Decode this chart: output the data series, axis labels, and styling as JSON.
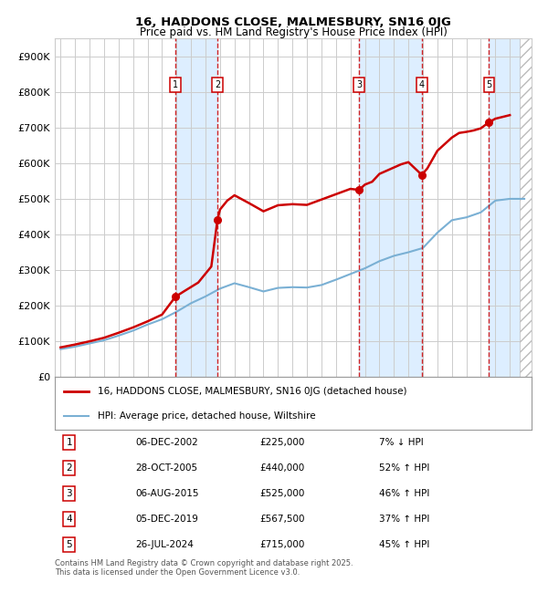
{
  "title": "16, HADDONS CLOSE, MALMESBURY, SN16 0JG",
  "subtitle": "Price paid vs. HM Land Registry's House Price Index (HPI)",
  "ylim": [
    0,
    950000
  ],
  "yticks": [
    0,
    100000,
    200000,
    300000,
    400000,
    500000,
    600000,
    700000,
    800000,
    900000
  ],
  "ytick_labels": [
    "£0",
    "£100K",
    "£200K",
    "£300K",
    "£400K",
    "£500K",
    "£600K",
    "£700K",
    "£800K",
    "£900K"
  ],
  "xlim_start": 1994.6,
  "xlim_end": 2027.5,
  "sales": [
    {
      "label": 1,
      "date": "06-DEC-2002",
      "year": 2002.92,
      "price": 225000,
      "pct": "7%",
      "dir": "↓"
    },
    {
      "label": 2,
      "date": "28-OCT-2005",
      "year": 2005.82,
      "price": 440000,
      "pct": "52%",
      "dir": "↑"
    },
    {
      "label": 3,
      "date": "06-AUG-2015",
      "year": 2015.59,
      "price": 525000,
      "pct": "46%",
      "dir": "↑"
    },
    {
      "label": 4,
      "date": "05-DEC-2019",
      "year": 2019.92,
      "price": 567500,
      "pct": "37%",
      "dir": "↑"
    },
    {
      "label": 5,
      "date": "26-JUL-2024",
      "year": 2024.56,
      "price": 715000,
      "pct": "45%",
      "dir": "↑"
    }
  ],
  "legend_line1": "16, HADDONS CLOSE, MALMESBURY, SN16 0JG (detached house)",
  "legend_line2": "HPI: Average price, detached house, Wiltshire",
  "footer": "Contains HM Land Registry data © Crown copyright and database right 2025.\nThis data is licensed under the Open Government Licence v3.0.",
  "property_color": "#cc0000",
  "hpi_color": "#7ab0d4",
  "shade_color": "#ddeeff",
  "grid_color": "#cccccc",
  "marker_y": 820000,
  "hpi_years": [
    1995,
    1996,
    1997,
    1998,
    1999,
    2000,
    2001,
    2002,
    2003,
    2004,
    2005,
    2006,
    2007,
    2008,
    2009,
    2010,
    2011,
    2012,
    2013,
    2014,
    2015,
    2016,
    2017,
    2018,
    2019,
    2020,
    2021,
    2022,
    2023,
    2024,
    2025,
    2026,
    2027
  ],
  "hpi_values": [
    78000,
    85000,
    94000,
    103000,
    116000,
    130000,
    147000,
    162000,
    183000,
    207000,
    226000,
    248000,
    263000,
    252000,
    240000,
    250000,
    252000,
    251000,
    258000,
    273000,
    289000,
    305000,
    325000,
    340000,
    350000,
    362000,
    405000,
    440000,
    448000,
    462000,
    495000,
    500000,
    500000
  ],
  "prop_years": [
    1995.0,
    1996.0,
    1997.0,
    1998.0,
    1999.0,
    2000.0,
    2001.0,
    2002.0,
    2002.92,
    2003.5,
    2004.5,
    2005.4,
    2005.82,
    2006.0,
    2006.5,
    2007.0,
    2008.0,
    2009.0,
    2010.0,
    2011.0,
    2012.0,
    2013.0,
    2014.0,
    2015.0,
    2015.59,
    2016.0,
    2016.5,
    2017.0,
    2018.0,
    2018.5,
    2019.0,
    2019.92,
    2020.3,
    2021.0,
    2022.0,
    2022.5,
    2023.0,
    2023.5,
    2024.0,
    2024.56,
    2025.0,
    2026.0
  ],
  "prop_values": [
    83000,
    91000,
    100000,
    110000,
    124000,
    139000,
    156000,
    175000,
    225000,
    240000,
    265000,
    310000,
    440000,
    470000,
    495000,
    510000,
    488000,
    465000,
    482000,
    485000,
    483000,
    498000,
    513000,
    528000,
    525000,
    540000,
    548000,
    570000,
    588000,
    597000,
    603000,
    567500,
    585000,
    635000,
    672000,
    685000,
    688000,
    692000,
    698000,
    715000,
    725000,
    735000
  ]
}
